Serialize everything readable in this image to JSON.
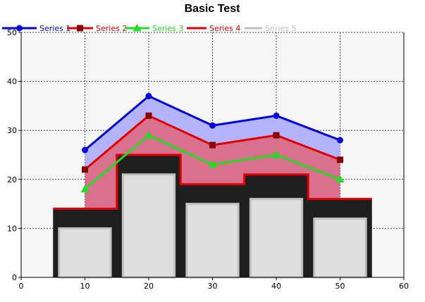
{
  "chart_data": {
    "type": "line",
    "title": "Basic Test",
    "xlabel": "",
    "ylabel": "",
    "xlim": [
      0,
      60
    ],
    "ylim": [
      0,
      50
    ],
    "x_ticks": [
      0,
      10,
      20,
      30,
      40,
      50,
      60
    ],
    "y_ticks": [
      0,
      10,
      20,
      30,
      40,
      50
    ],
    "grid": true,
    "grid_style": "dashed",
    "legend_placement": "top-left",
    "plot_background": "#f6f6f6",
    "x": [
      10,
      20,
      30,
      40,
      50
    ],
    "series": [
      {
        "name": "Series 1",
        "kind": "line-area",
        "marker": "circle",
        "color": "#0000dd",
        "fill": "#b3b3ff",
        "values": [
          26,
          37,
          31,
          33,
          28
        ]
      },
      {
        "name": "Series 2",
        "kind": "line-area",
        "marker": "square",
        "color": "#e00000",
        "marker_color": "#8b0000",
        "fill": "#d9708e",
        "values": [
          22,
          33,
          27,
          29,
          24
        ]
      },
      {
        "name": "Series 3",
        "kind": "line",
        "marker": "triangle",
        "color": "#22dd22",
        "values": [
          18,
          29,
          23,
          25,
          20
        ]
      },
      {
        "name": "Series 4",
        "kind": "step-area",
        "color": "#e00000",
        "fill": "#1e1e1e",
        "values": [
          14,
          25,
          19,
          21,
          16
        ]
      },
      {
        "name": "Series 5",
        "kind": "bar",
        "color": "#c0c0c0",
        "fill": "#dedede",
        "values": [
          10,
          21,
          15,
          16,
          12
        ]
      }
    ]
  }
}
